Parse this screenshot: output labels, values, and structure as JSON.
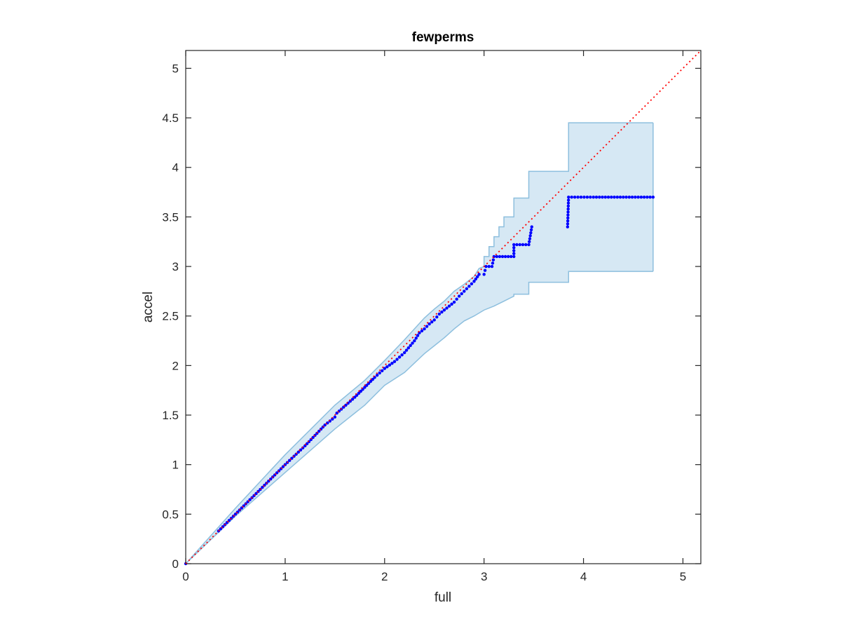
{
  "chart_data": {
    "type": "scatter",
    "title": "fewperms",
    "xlabel": "full",
    "ylabel": "accel",
    "xlim": [
      0,
      5.18
    ],
    "ylim": [
      0,
      5.18
    ],
    "xticks": [
      "0",
      "1",
      "2",
      "3",
      "4",
      "5"
    ],
    "yticks": [
      "0",
      "0.5",
      "1",
      "1.5",
      "2",
      "2.5",
      "3",
      "3.5",
      "4",
      "4.5",
      "5"
    ],
    "xtick_values": [
      0,
      1,
      2,
      3,
      4,
      5
    ],
    "ytick_values": [
      0,
      0.5,
      1,
      1.5,
      2,
      2.5,
      3,
      3.5,
      4,
      4.5,
      5
    ],
    "grid": false,
    "colors": {
      "points": "#0000ff",
      "reference_line": "#ff0000",
      "band_fill": "#d6e8f4",
      "band_edge": "#8dbfde",
      "axes": "#262626"
    },
    "reference_line": {
      "style": "dotted",
      "from": [
        0,
        0
      ],
      "to": [
        5.18,
        5.18
      ]
    },
    "confidence_band": {
      "upper": [
        [
          0,
          0
        ],
        [
          0.5,
          0.56
        ],
        [
          1,
          1.1
        ],
        [
          1.3,
          1.4
        ],
        [
          1.5,
          1.6
        ],
        [
          1.8,
          1.85
        ],
        [
          2,
          2.05
        ],
        [
          2.2,
          2.26
        ],
        [
          2.4,
          2.48
        ],
        [
          2.5,
          2.57
        ],
        [
          2.6,
          2.65
        ],
        [
          2.7,
          2.75
        ],
        [
          2.8,
          2.82
        ],
        [
          2.9,
          2.9
        ],
        [
          2.95,
          2.98
        ],
        [
          3.0,
          3.0
        ],
        [
          3.0,
          3.1
        ],
        [
          3.05,
          3.1
        ],
        [
          3.05,
          3.2
        ],
        [
          3.1,
          3.2
        ],
        [
          3.1,
          3.3
        ],
        [
          3.15,
          3.3
        ],
        [
          3.15,
          3.4
        ],
        [
          3.2,
          3.4
        ],
        [
          3.2,
          3.5
        ],
        [
          3.3,
          3.5
        ],
        [
          3.3,
          3.69
        ],
        [
          3.45,
          3.69
        ],
        [
          3.45,
          3.96
        ],
        [
          3.85,
          3.96
        ],
        [
          3.85,
          4.45
        ],
        [
          4.7,
          4.45
        ]
      ],
      "lower": [
        [
          0,
          0
        ],
        [
          0.5,
          0.48
        ],
        [
          1,
          0.92
        ],
        [
          1.5,
          1.36
        ],
        [
          1.8,
          1.6
        ],
        [
          2,
          1.8
        ],
        [
          2.2,
          1.93
        ],
        [
          2.4,
          2.12
        ],
        [
          2.5,
          2.2
        ],
        [
          2.6,
          2.28
        ],
        [
          2.7,
          2.37
        ],
        [
          2.8,
          2.45
        ],
        [
          2.9,
          2.5
        ],
        [
          3.0,
          2.56
        ],
        [
          3.1,
          2.6
        ],
        [
          3.2,
          2.65
        ],
        [
          3.3,
          2.7
        ],
        [
          3.3,
          2.72
        ],
        [
          3.45,
          2.72
        ],
        [
          3.45,
          2.84
        ],
        [
          3.85,
          2.84
        ],
        [
          3.85,
          2.95
        ],
        [
          4.7,
          2.95
        ]
      ]
    },
    "series": [
      {
        "values": [
          [
            0.33,
            0.33
          ],
          [
            0.5,
            0.5
          ],
          [
            0.75,
            0.75
          ],
          [
            1.0,
            1.0
          ],
          [
            1.2,
            1.19
          ],
          [
            1.4,
            1.4
          ],
          [
            1.5,
            1.48
          ],
          [
            1.52,
            1.52
          ],
          [
            1.7,
            1.68
          ],
          [
            1.9,
            1.88
          ],
          [
            2.0,
            1.97
          ],
          [
            2.1,
            2.04
          ],
          [
            2.2,
            2.13
          ],
          [
            2.3,
            2.25
          ],
          [
            2.35,
            2.33
          ],
          [
            2.4,
            2.37
          ],
          [
            2.45,
            2.42
          ],
          [
            2.5,
            2.46
          ],
          [
            2.55,
            2.52
          ],
          [
            2.6,
            2.56
          ],
          [
            2.65,
            2.6
          ],
          [
            2.7,
            2.64
          ],
          [
            2.75,
            2.7
          ],
          [
            2.8,
            2.75
          ],
          [
            2.85,
            2.8
          ],
          [
            2.9,
            2.85
          ],
          [
            2.95,
            2.92
          ],
          [
            3.0,
            2.92
          ],
          [
            3.02,
            3.0
          ],
          [
            3.08,
            3.0
          ],
          [
            3.1,
            3.1
          ],
          [
            3.3,
            3.1
          ],
          [
            3.3,
            3.22
          ],
          [
            3.45,
            3.22
          ],
          [
            3.48,
            3.4
          ],
          [
            3.84,
            3.4
          ],
          [
            3.85,
            3.7
          ],
          [
            4.1,
            3.7
          ],
          [
            4.22,
            3.7
          ],
          [
            4.4,
            3.7
          ],
          [
            4.7,
            3.7
          ]
        ]
      }
    ]
  }
}
